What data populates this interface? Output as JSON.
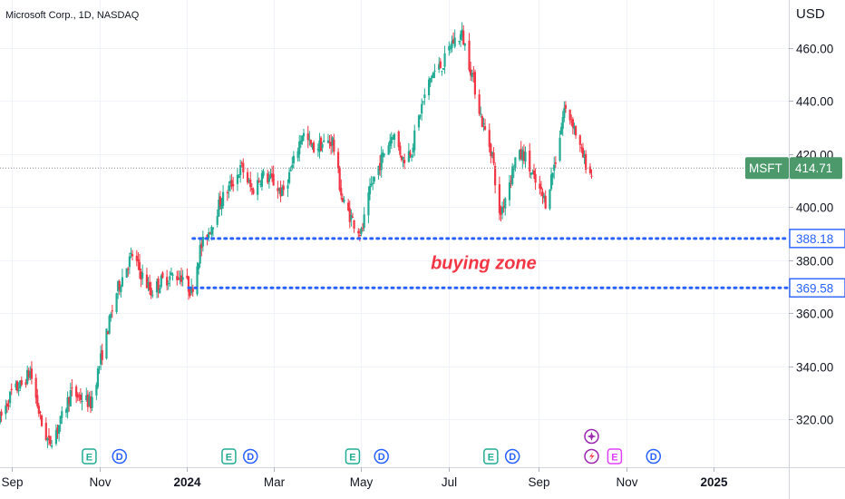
{
  "header": {
    "symbol_title": "Microsoft Corp., 1D, NASDAQ",
    "currency": "USD"
  },
  "chart_data": {
    "type": "candlestick",
    "ylim": [
      302,
      478
    ],
    "y_ticks": [
      320,
      340,
      360,
      380,
      400,
      420,
      440,
      460
    ],
    "x_range": [
      "2023-08-24",
      "2025-02-22"
    ],
    "x_ticks": [
      {
        "label": "Sep",
        "date": "2023-09-01",
        "bold": false
      },
      {
        "label": "Nov",
        "date": "2023-11-01",
        "bold": false
      },
      {
        "label": "2024",
        "date": "2024-01-01",
        "bold": true
      },
      {
        "label": "Mar",
        "date": "2024-03-01",
        "bold": false
      },
      {
        "label": "May",
        "date": "2024-05-01",
        "bold": false
      },
      {
        "label": "Jul",
        "date": "2024-07-01",
        "bold": false
      },
      {
        "label": "Sep",
        "date": "2024-09-01",
        "bold": false
      },
      {
        "label": "Nov",
        "date": "2024-11-01",
        "bold": false
      },
      {
        "label": "2025",
        "date": "2025-01-01",
        "bold": true
      }
    ],
    "last_date": "2024-10-08",
    "anchors": [
      [
        "2023-08-24",
        320
      ],
      [
        "2023-09-01",
        330
      ],
      [
        "2023-09-08",
        333
      ],
      [
        "2023-09-14",
        338
      ],
      [
        "2023-09-22",
        318
      ],
      [
        "2023-09-27",
        311
      ],
      [
        "2023-10-05",
        319
      ],
      [
        "2023-10-12",
        330
      ],
      [
        "2023-10-20",
        328
      ],
      [
        "2023-10-26",
        326
      ],
      [
        "2023-10-31",
        338
      ],
      [
        "2023-11-06",
        352
      ],
      [
        "2023-11-13",
        368
      ],
      [
        "2023-11-20",
        378
      ],
      [
        "2023-11-24",
        382
      ],
      [
        "2023-11-30",
        375
      ],
      [
        "2023-12-07",
        368
      ],
      [
        "2023-12-14",
        372
      ],
      [
        "2023-12-21",
        374
      ],
      [
        "2023-12-29",
        374
      ],
      [
        "2024-01-04",
        368
      ],
      [
        "2024-01-10",
        384
      ],
      [
        "2024-01-17",
        392
      ],
      [
        "2024-01-24",
        402
      ],
      [
        "2024-01-31",
        408
      ],
      [
        "2024-02-08",
        415
      ],
      [
        "2024-02-15",
        406
      ],
      [
        "2024-02-22",
        412
      ],
      [
        "2024-02-29",
        410
      ],
      [
        "2024-03-07",
        405
      ],
      [
        "2024-03-14",
        415
      ],
      [
        "2024-03-21",
        428
      ],
      [
        "2024-03-28",
        422
      ],
      [
        "2024-04-05",
        424
      ],
      [
        "2024-04-11",
        425
      ],
      [
        "2024-04-18",
        402
      ],
      [
        "2024-04-25",
        395
      ],
      [
        "2024-05-01",
        390
      ],
      [
        "2024-05-08",
        408
      ],
      [
        "2024-05-15",
        418
      ],
      [
        "2024-05-23",
        428
      ],
      [
        "2024-05-30",
        418
      ],
      [
        "2024-06-05",
        422
      ],
      [
        "2024-06-12",
        438
      ],
      [
        "2024-06-19",
        450
      ],
      [
        "2024-06-27",
        454
      ],
      [
        "2024-07-03",
        462
      ],
      [
        "2024-07-10",
        465
      ],
      [
        "2024-07-17",
        450
      ],
      [
        "2024-07-24",
        432
      ],
      [
        "2024-07-31",
        420
      ],
      [
        "2024-08-05",
        396
      ],
      [
        "2024-08-09",
        404
      ],
      [
        "2024-08-16",
        418
      ],
      [
        "2024-08-22",
        420
      ],
      [
        "2024-08-29",
        410
      ],
      [
        "2024-09-06",
        402
      ],
      [
        "2024-09-13",
        418
      ],
      [
        "2024-09-19",
        437
      ],
      [
        "2024-09-25",
        432
      ],
      [
        "2024-10-01",
        420
      ],
      [
        "2024-10-08",
        412
      ]
    ],
    "last_price": {
      "label": "MSFT",
      "value": "414.71",
      "price": 414.71
    },
    "horizontal_levels": [
      {
        "price": 388.18,
        "label": "388.18",
        "from_date": "2024-01-05",
        "color": "#2962ff"
      },
      {
        "price": 369.58,
        "label": "369.58",
        "from_date": "2024-01-02",
        "color": "#2962ff"
      }
    ],
    "annotation": {
      "text": "buying zone",
      "price": 379,
      "date": "2024-07-25",
      "color": "#f23645"
    },
    "events": [
      {
        "type": "E",
        "date": "2023-10-25",
        "color": "#22ab94"
      },
      {
        "type": "D",
        "date": "2023-11-15",
        "color": "#2962ff"
      },
      {
        "type": "E",
        "date": "2024-01-30",
        "color": "#22ab94"
      },
      {
        "type": "D",
        "date": "2024-02-14",
        "color": "#2962ff"
      },
      {
        "type": "E",
        "date": "2024-04-25",
        "color": "#22ab94"
      },
      {
        "type": "D",
        "date": "2024-05-15",
        "color": "#2962ff"
      },
      {
        "type": "E",
        "date": "2024-07-30",
        "color": "#22ab94"
      },
      {
        "type": "D",
        "date": "2024-08-14",
        "color": "#2962ff"
      },
      {
        "type": "F",
        "date": "2024-10-08",
        "color": "#9c27b0"
      },
      {
        "type": "E",
        "date": "2024-10-24",
        "color": "#e040fb"
      },
      {
        "type": "D",
        "date": "2024-11-20",
        "color": "#2962ff"
      }
    ],
    "extra_marker": {
      "type": "P",
      "date": "2024-10-08",
      "color": "#9c27b0"
    },
    "up_color": "#22ab94",
    "down_color": "#f23645"
  }
}
